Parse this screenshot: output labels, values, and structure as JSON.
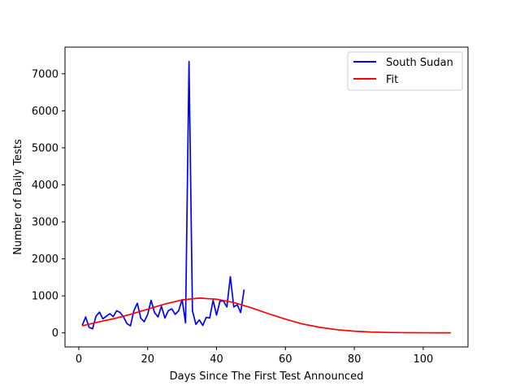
{
  "chart_data": {
    "type": "line",
    "xlabel": "Days Since The First Test Announced",
    "ylabel": "Number of Daily Tests",
    "xlim": [
      -4,
      113
    ],
    "ylim": [
      -380,
      7720
    ],
    "x_ticks": [
      0,
      20,
      40,
      60,
      80,
      100
    ],
    "y_ticks": [
      0,
      1000,
      2000,
      3000,
      4000,
      5000,
      6000,
      7000
    ],
    "grid": false,
    "legend_position": "top-right",
    "series": [
      {
        "name": "South Sudan",
        "color": "#0000ff",
        "x": [
          1,
          2,
          3,
          4,
          5,
          6,
          7,
          8,
          9,
          10,
          11,
          12,
          13,
          14,
          15,
          16,
          17,
          18,
          19,
          20,
          21,
          22,
          23,
          24,
          25,
          26,
          27,
          28,
          29,
          30,
          31,
          32,
          33,
          34,
          35,
          36,
          37,
          38,
          39,
          40,
          41,
          42,
          43,
          44,
          45,
          46,
          47,
          48
        ],
        "y": [
          200,
          430,
          150,
          110,
          450,
          560,
          380,
          450,
          520,
          440,
          600,
          550,
          430,
          250,
          190,
          600,
          800,
          400,
          300,
          500,
          880,
          550,
          430,
          720,
          400,
          600,
          650,
          500,
          600,
          900,
          270,
          7330,
          600,
          230,
          350,
          200,
          420,
          400,
          880,
          480,
          860,
          860,
          700,
          1520,
          700,
          760,
          550,
          1170
        ]
      },
      {
        "name": "Fit",
        "color": "#ff0000",
        "x": [
          1,
          5,
          10,
          15,
          20,
          25,
          30,
          35,
          40,
          45,
          50,
          55,
          60,
          65,
          70,
          75,
          80,
          85,
          90,
          95,
          100,
          105,
          108
        ],
        "y": [
          190,
          280,
          380,
          500,
          640,
          780,
          890,
          940,
          910,
          820,
          680,
          520,
          370,
          240,
          150,
          85,
          45,
          22,
          11,
          5,
          3,
          1,
          1
        ]
      }
    ]
  }
}
